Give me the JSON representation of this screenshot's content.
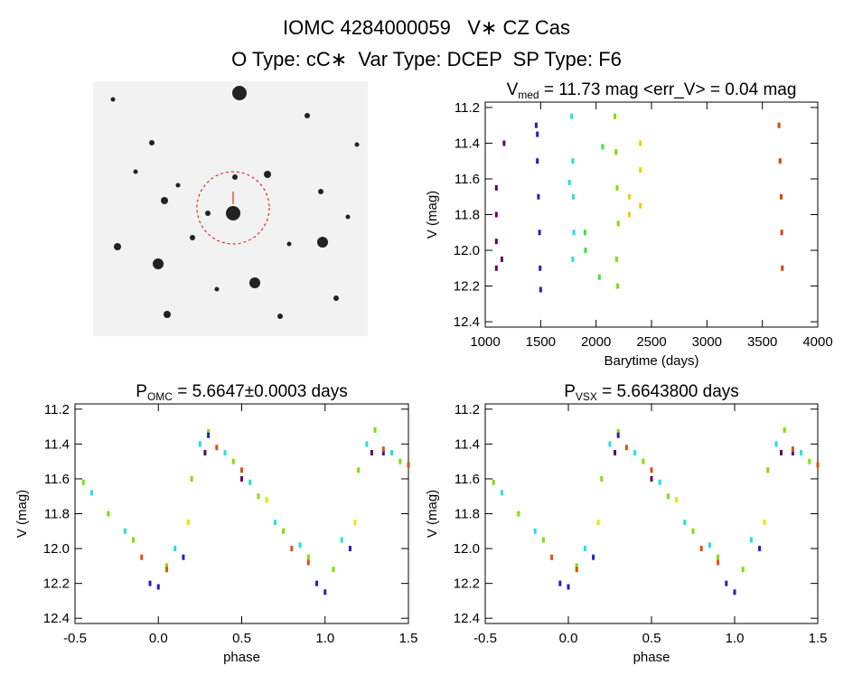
{
  "header": {
    "title": "IOMC 4284000059   V∗ CZ Cas",
    "subtitle": "O Type: cC∗  Var Type: DCEP  SP Type: F6"
  },
  "chart_data": [
    {
      "type": "scatter",
      "title": "V",
      "title_sub": "med",
      "title_tail": " = 11.73 mag <err_V> = 0.04 mag",
      "xlabel": "Barytime (days)",
      "ylabel": "V (mag)",
      "xlim": [
        1000,
        4000
      ],
      "xticks": [
        1000,
        1500,
        2000,
        2500,
        3000,
        3500,
        4000
      ],
      "ylim": [
        11.17,
        12.43
      ],
      "y_inverted": true,
      "yticks": [
        11.2,
        11.4,
        11.6,
        11.8,
        {
          "value": 12,
          "label": "12.0"
        },
        12.2,
        12.4
      ],
      "series": [
        {
          "color": "#600060",
          "x": [
            1100,
            1100,
            1100,
            1100,
            1150,
            1170
          ],
          "values": [
            11.65,
            11.8,
            11.95,
            12.1,
            12.05,
            11.4
          ]
        },
        {
          "color": "#2020c0",
          "x": [
            1460,
            1470,
            1480,
            1490,
            1495,
            1500,
            1470
          ],
          "values": [
            11.3,
            11.5,
            11.7,
            11.9,
            12.1,
            12.22,
            11.35
          ]
        },
        {
          "color": "#20e0e0",
          "x": [
            1780,
            1790,
            1795,
            1800,
            1790,
            1760
          ],
          "values": [
            11.25,
            11.5,
            11.7,
            11.9,
            12.05,
            11.62
          ]
        },
        {
          "color": "#40e040",
          "x": [
            1900,
            1905,
            2030,
            2060
          ],
          "values": [
            11.9,
            12.0,
            12.15,
            11.42
          ]
        },
        {
          "color": "#80e000",
          "x": [
            2170,
            2180,
            2190,
            2200,
            2185,
            2195
          ],
          "values": [
            11.25,
            11.45,
            11.65,
            11.85,
            12.05,
            12.2
          ]
        },
        {
          "color": "#f0d000",
          "x": [
            2300,
            2300,
            2400,
            2400,
            2400
          ],
          "values": [
            11.7,
            11.8,
            11.4,
            11.55,
            11.75
          ]
        },
        {
          "color": "#e04000",
          "x": [
            3650,
            3660,
            3670,
            3675,
            3680
          ],
          "values": [
            11.3,
            11.5,
            11.7,
            11.9,
            12.1
          ]
        }
      ]
    },
    {
      "type": "scatter",
      "title": "P",
      "title_sub": "OMC",
      "title_tail": " = 5.6647±0.0003 days",
      "xlabel": "phase",
      "ylabel": "V (mag)",
      "xlim": [
        -0.5,
        1.5
      ],
      "xticks": [
        -0.5,
        {
          "value": 0,
          "label": "0.0"
        },
        0.5,
        {
          "value": 1,
          "label": "1.0"
        },
        1.5
      ],
      "ylim": [
        11.17,
        12.43
      ],
      "y_inverted": true,
      "yticks": [
        11.2,
        11.4,
        11.6,
        11.8,
        {
          "value": 12,
          "label": "12.0"
        },
        12.2,
        12.4
      ],
      "series": [
        {
          "color": "#7fe000",
          "x": [
            -0.45,
            -0.3,
            -0.15,
            0.05,
            0.2,
            0.3,
            0.45,
            0.6,
            0.75,
            0.9,
            1.05,
            1.2,
            1.3,
            1.45
          ],
          "values": [
            11.62,
            11.8,
            11.95,
            12.1,
            11.6,
            11.33,
            11.5,
            11.7,
            11.9,
            12.05,
            12.12,
            11.55,
            11.32,
            11.5
          ]
        },
        {
          "color": "#20e0e0",
          "x": [
            -0.4,
            -0.2,
            0.1,
            0.25,
            0.4,
            0.55,
            0.7,
            0.85,
            1.1,
            1.25,
            1.4
          ],
          "values": [
            11.68,
            11.9,
            12.0,
            11.4,
            11.45,
            11.62,
            11.85,
            11.98,
            11.95,
            11.4,
            11.45
          ]
        },
        {
          "color": "#2020c0",
          "x": [
            -0.05,
            0.0,
            0.15,
            0.3,
            0.95,
            1.0,
            1.15,
            1.35
          ],
          "values": [
            12.2,
            12.22,
            12.05,
            11.35,
            12.2,
            12.25,
            12.0,
            11.45
          ]
        },
        {
          "color": "#e05010",
          "x": [
            -0.1,
            0.05,
            0.35,
            0.5,
            0.8,
            0.9,
            1.35,
            1.5
          ],
          "values": [
            12.05,
            12.12,
            11.42,
            11.55,
            12.0,
            12.08,
            11.43,
            11.52
          ]
        },
        {
          "color": "#600060",
          "x": [
            0.28,
            0.5,
            1.28
          ],
          "values": [
            11.45,
            11.6,
            11.45
          ]
        },
        {
          "color": "#f0e000",
          "x": [
            0.18,
            0.65,
            1.18
          ],
          "values": [
            11.85,
            11.72,
            11.85
          ]
        }
      ]
    },
    {
      "type": "scatter",
      "title": "P",
      "title_sub": "VSX",
      "title_tail": " = 5.6643800 days",
      "xlabel": "phase",
      "ylabel": "V (mag)",
      "xlim": [
        -0.5,
        1.5
      ],
      "xticks": [
        -0.5,
        {
          "value": 0,
          "label": "0.0"
        },
        0.5,
        {
          "value": 1,
          "label": "1.0"
        },
        1.5
      ],
      "ylim": [
        11.17,
        12.43
      ],
      "y_inverted": true,
      "yticks": [
        11.2,
        11.4,
        11.6,
        11.8,
        {
          "value": 12,
          "label": "12.0"
        },
        12.2,
        12.4
      ],
      "series": [
        {
          "color": "#7fe000",
          "x": [
            -0.45,
            -0.3,
            -0.15,
            0.05,
            0.2,
            0.3,
            0.45,
            0.6,
            0.75,
            0.9,
            1.05,
            1.2,
            1.3,
            1.45
          ],
          "values": [
            11.62,
            11.8,
            11.95,
            12.1,
            11.6,
            11.33,
            11.5,
            11.7,
            11.9,
            12.05,
            12.12,
            11.55,
            11.32,
            11.5
          ]
        },
        {
          "color": "#20e0e0",
          "x": [
            -0.4,
            -0.2,
            0.1,
            0.25,
            0.4,
            0.55,
            0.7,
            0.85,
            1.1,
            1.25,
            1.4
          ],
          "values": [
            11.68,
            11.9,
            12.0,
            11.4,
            11.45,
            11.62,
            11.85,
            11.98,
            11.95,
            11.4,
            11.45
          ]
        },
        {
          "color": "#2020c0",
          "x": [
            -0.05,
            0.0,
            0.15,
            0.3,
            0.95,
            1.0,
            1.15,
            1.35
          ],
          "values": [
            12.2,
            12.22,
            12.05,
            11.35,
            12.2,
            12.25,
            12.0,
            11.45
          ]
        },
        {
          "color": "#e05010",
          "x": [
            -0.1,
            0.05,
            0.35,
            0.5,
            0.8,
            0.9,
            1.35,
            1.5
          ],
          "values": [
            12.05,
            12.12,
            11.42,
            11.55,
            12.0,
            12.08,
            11.43,
            11.52
          ]
        },
        {
          "color": "#600060",
          "x": [
            0.28,
            0.5,
            1.28
          ],
          "values": [
            11.45,
            11.6,
            11.45
          ]
        },
        {
          "color": "#f0e000",
          "x": [
            0.18,
            0.65,
            1.18
          ],
          "values": [
            11.85,
            11.72,
            11.85
          ]
        }
      ]
    }
  ]
}
